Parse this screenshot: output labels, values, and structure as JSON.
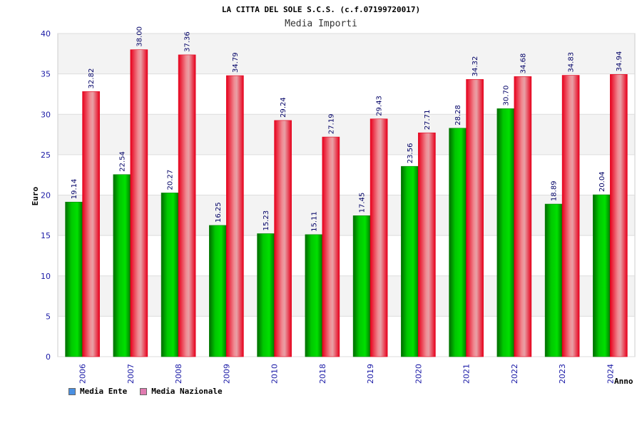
{
  "chart_data": {
    "type": "bar",
    "title": "LA CITTA DEL SOLE S.C.S. (c.f.07199720017)",
    "subtitle": "Media Importi",
    "xlabel": "Anno",
    "ylabel": "Euro",
    "ylim": [
      0,
      40
    ],
    "yticks": [
      0,
      5,
      10,
      15,
      20,
      25,
      30,
      35,
      40
    ],
    "grid": true,
    "legend_position": "bottom-left",
    "categories": [
      "2006",
      "2007",
      "2008",
      "2009",
      "2010",
      "2018",
      "2019",
      "2020",
      "2021",
      "2022",
      "2023",
      "2024"
    ],
    "series": [
      {
        "name": "Media Ente",
        "color": "#00a000",
        "legend_color": "#4a90e2",
        "values": [
          19.14,
          22.54,
          20.27,
          16.25,
          15.23,
          15.11,
          17.45,
          23.56,
          28.28,
          30.7,
          18.89,
          20.04
        ],
        "labels": [
          "19.14",
          "22.54",
          "20.27",
          "16.25",
          "15.23",
          "15.11",
          "17.45",
          "23.56",
          "28.28",
          "30.70",
          "18.89",
          "20.04"
        ]
      },
      {
        "name": "Media Nazionale",
        "color": "#e8102a",
        "legend_color": "#e07bb0",
        "values": [
          32.82,
          38.0,
          37.36,
          34.79,
          29.24,
          27.19,
          29.43,
          27.71,
          34.32,
          34.68,
          34.83,
          34.94
        ],
        "labels": [
          "32.82",
          "38.00",
          "37.36",
          "34.79",
          "29.24",
          "27.19",
          "29.43",
          "27.71",
          "34.32",
          "34.68",
          "34.83",
          "34.94"
        ]
      }
    ]
  }
}
